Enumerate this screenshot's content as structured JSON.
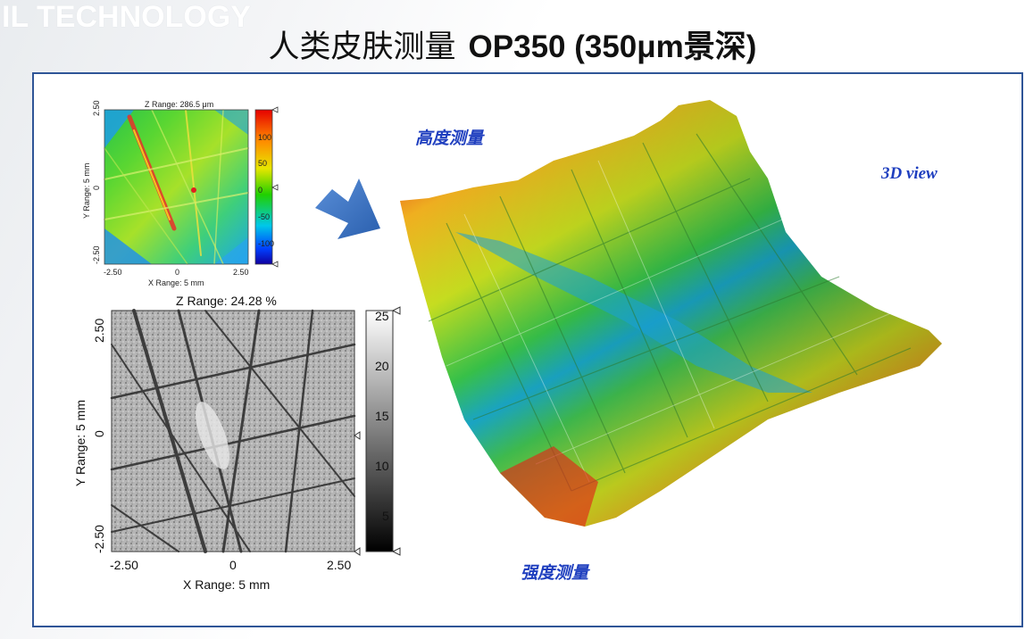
{
  "watermark": "IL TECHNOLOGY",
  "title": {
    "cn": "人类皮肤测量",
    "en": "OP350 (350μm景深)"
  },
  "labels": {
    "height": "高度测量",
    "view3d": "3D view",
    "intensity": "强度测量"
  },
  "height_map": {
    "z_range": "Z Range:  286.5 μm",
    "y_axis": "Y Range: 5 mm",
    "x_axis": "X Range: 5 mm",
    "x_ticks": [
      "-2.50",
      "0",
      "2.50"
    ],
    "y_ticks": [
      "2.50",
      "0",
      "-2.50"
    ],
    "colorbar_ticks": [
      "100",
      "50",
      "0",
      "-50",
      "-100"
    ]
  },
  "intensity_map": {
    "z_range": "Z Range:  24.28 %",
    "y_axis": "Y Range: 5 mm",
    "x_axis": "X Range: 5 mm",
    "x_ticks": [
      "-2.50",
      "0",
      "2.50"
    ],
    "y_ticks": [
      "2.50",
      "0",
      "-2.50"
    ],
    "colorbar_ticks": [
      "25",
      "20",
      "15",
      "10",
      "5"
    ]
  },
  "colors": {
    "frame": "#2f5597",
    "label": "#1f3fbf",
    "arrow": "#3f74c5"
  }
}
